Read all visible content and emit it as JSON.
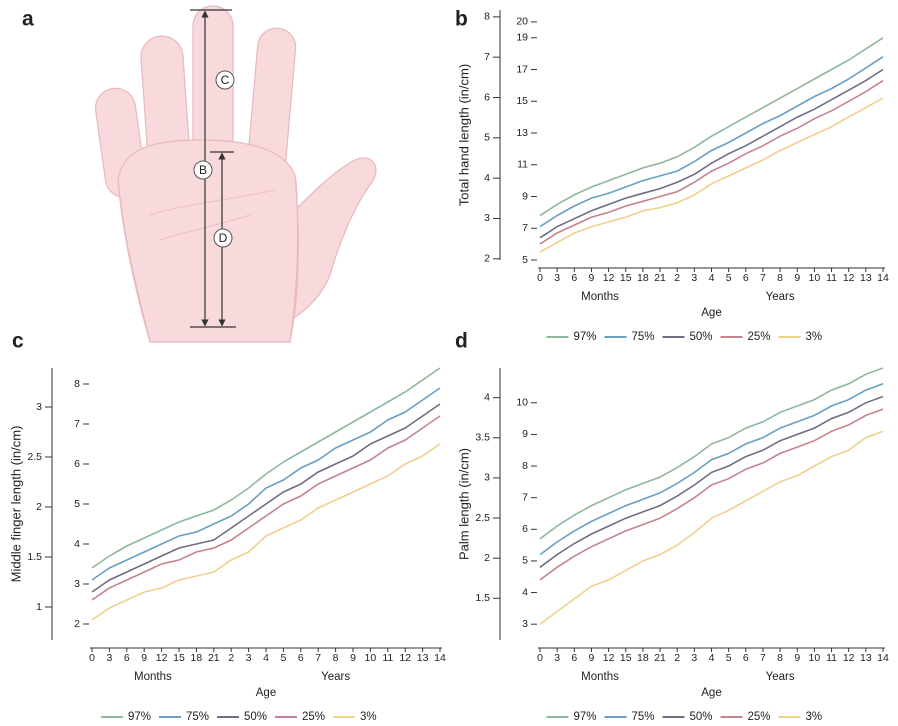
{
  "panel_a": {
    "label": "a",
    "markers": [
      "C",
      "B",
      "D"
    ]
  },
  "chart_data": [
    {
      "type": "line",
      "label": "b",
      "y_label": "Total hand length (in/cm)",
      "x_label": "Age",
      "x_groups": [
        "Months",
        "Years"
      ],
      "categories": [
        "0",
        "3",
        "6",
        "9",
        "12",
        "15",
        "18",
        "21",
        "2",
        "3",
        "4",
        "5",
        "6",
        "7",
        "8",
        "9",
        "10",
        "11",
        "12",
        "13",
        "14"
      ],
      "ylim": [
        5,
        20.75
      ],
      "yticks": [
        5,
        7,
        9,
        11,
        13,
        15,
        17,
        19,
        20
      ],
      "y2lim": [
        1.97,
        8.17
      ],
      "y2ticks": [
        2,
        3,
        4,
        5,
        6,
        7,
        8
      ],
      "legend": "bottom",
      "series": [
        {
          "name": "97%",
          "color": "#8fb79a",
          "values": [
            7.8,
            8.5,
            9.1,
            9.6,
            10.0,
            10.4,
            10.8,
            11.1,
            11.5,
            12.1,
            12.8,
            13.4,
            14.0,
            14.6,
            15.2,
            15.8,
            16.4,
            17.0,
            17.6,
            18.3,
            19.0
          ]
        },
        {
          "name": "75%",
          "color": "#6a9fc0",
          "values": [
            7.1,
            7.8,
            8.4,
            8.9,
            9.2,
            9.6,
            10.0,
            10.3,
            10.6,
            11.2,
            11.9,
            12.4,
            13.0,
            13.6,
            14.1,
            14.7,
            15.3,
            15.8,
            16.4,
            17.1,
            17.8
          ]
        },
        {
          "name": "50%",
          "color": "#6f6d86",
          "values": [
            6.4,
            7.1,
            7.6,
            8.1,
            8.5,
            8.9,
            9.2,
            9.5,
            9.9,
            10.4,
            11.1,
            11.7,
            12.2,
            12.8,
            13.4,
            14.0,
            14.5,
            15.1,
            15.7,
            16.3,
            17.0
          ]
        },
        {
          "name": "25%",
          "color": "#c4838d",
          "values": [
            6.0,
            6.7,
            7.2,
            7.7,
            8.0,
            8.4,
            8.7,
            9.0,
            9.3,
            9.9,
            10.6,
            11.1,
            11.7,
            12.2,
            12.8,
            13.3,
            13.9,
            14.4,
            15.0,
            15.6,
            16.3
          ]
        },
        {
          "name": "3%",
          "color": "#efd08f",
          "values": [
            5.5,
            6.1,
            6.7,
            7.1,
            7.4,
            7.7,
            8.1,
            8.3,
            8.6,
            9.1,
            9.8,
            10.3,
            10.8,
            11.3,
            11.9,
            12.4,
            12.9,
            13.4,
            14.0,
            14.6,
            15.2
          ]
        }
      ]
    },
    {
      "type": "line",
      "label": "c",
      "y_label": "Middle finger length (in/cm)",
      "x_label": "Age",
      "x_groups": [
        "Months",
        "Years"
      ],
      "categories": [
        "0",
        "3",
        "6",
        "9",
        "12",
        "15",
        "18",
        "21",
        "2",
        "3",
        "4",
        "5",
        "6",
        "7",
        "8",
        "9",
        "10",
        "11",
        "12",
        "13",
        "14"
      ],
      "ylim": [
        1.6,
        8.4
      ],
      "yticks": [
        2,
        3,
        4,
        5,
        6,
        7,
        8
      ],
      "y2lim": [
        0.67,
        3.39
      ],
      "y2ticks": [
        1,
        1.5,
        2,
        2.5,
        3
      ],
      "legend": "bottom",
      "series": [
        {
          "name": "97%",
          "color": "#8fb79a",
          "values": [
            3.4,
            3.7,
            3.95,
            4.15,
            4.35,
            4.55,
            4.7,
            4.85,
            5.1,
            5.4,
            5.75,
            6.05,
            6.3,
            6.55,
            6.8,
            7.05,
            7.3,
            7.55,
            7.8,
            8.1,
            8.4
          ]
        },
        {
          "name": "75%",
          "color": "#6a9fc0",
          "values": [
            3.1,
            3.4,
            3.6,
            3.8,
            4.0,
            4.2,
            4.3,
            4.5,
            4.7,
            5.0,
            5.4,
            5.6,
            5.9,
            6.1,
            6.4,
            6.6,
            6.8,
            7.1,
            7.3,
            7.6,
            7.9
          ]
        },
        {
          "name": "50%",
          "color": "#6f6d86",
          "values": [
            2.8,
            3.1,
            3.3,
            3.5,
            3.7,
            3.9,
            4.0,
            4.1,
            4.4,
            4.7,
            5.0,
            5.3,
            5.5,
            5.8,
            6.0,
            6.2,
            6.5,
            6.7,
            6.9,
            7.2,
            7.5
          ]
        },
        {
          "name": "25%",
          "color": "#c4838d",
          "values": [
            2.6,
            2.9,
            3.1,
            3.3,
            3.5,
            3.6,
            3.8,
            3.9,
            4.1,
            4.4,
            4.7,
            5.0,
            5.2,
            5.5,
            5.7,
            5.9,
            6.1,
            6.4,
            6.6,
            6.9,
            7.2
          ]
        },
        {
          "name": "3%",
          "color": "#efd08f",
          "values": [
            2.1,
            2.4,
            2.6,
            2.8,
            2.9,
            3.1,
            3.2,
            3.3,
            3.6,
            3.8,
            4.2,
            4.4,
            4.6,
            4.9,
            5.1,
            5.3,
            5.5,
            5.7,
            6.0,
            6.2,
            6.5
          ]
        }
      ]
    },
    {
      "type": "line",
      "label": "d",
      "y_label": "Palm length (in/cm)",
      "x_label": "Age",
      "x_groups": [
        "Months",
        "Years"
      ],
      "categories": [
        "0",
        "3",
        "6",
        "9",
        "12",
        "15",
        "18",
        "21",
        "2",
        "3",
        "4",
        "5",
        "6",
        "7",
        "8",
        "9",
        "10",
        "11",
        "12",
        "13",
        "14"
      ],
      "ylim": [
        2.5,
        11.1
      ],
      "yticks": [
        3,
        4,
        5,
        6,
        7,
        8,
        9,
        10
      ],
      "y2lim": [
        0.98,
        4.37
      ],
      "y2ticks": [
        1.5,
        2,
        2.5,
        3,
        3.5,
        4
      ],
      "legend": "bottom",
      "series": [
        {
          "name": "97%",
          "color": "#8fb79a",
          "values": [
            5.7,
            6.1,
            6.45,
            6.75,
            7.0,
            7.25,
            7.45,
            7.65,
            7.95,
            8.3,
            8.7,
            8.9,
            9.2,
            9.4,
            9.7,
            9.9,
            10.1,
            10.4,
            10.6,
            10.9,
            11.1
          ]
        },
        {
          "name": "75%",
          "color": "#6a9fc0",
          "values": [
            5.2,
            5.6,
            5.95,
            6.25,
            6.5,
            6.75,
            6.95,
            7.15,
            7.45,
            7.8,
            8.2,
            8.4,
            8.7,
            8.9,
            9.2,
            9.4,
            9.6,
            9.9,
            10.1,
            10.4,
            10.6
          ]
        },
        {
          "name": "50%",
          "color": "#6f6d86",
          "values": [
            4.8,
            5.2,
            5.55,
            5.85,
            6.1,
            6.35,
            6.55,
            6.75,
            7.05,
            7.4,
            7.8,
            8.0,
            8.3,
            8.5,
            8.8,
            9.0,
            9.2,
            9.5,
            9.7,
            10.0,
            10.2
          ]
        },
        {
          "name": "25%",
          "color": "#c4838d",
          "values": [
            4.4,
            4.8,
            5.15,
            5.45,
            5.7,
            5.95,
            6.15,
            6.35,
            6.65,
            7.0,
            7.4,
            7.6,
            7.9,
            8.1,
            8.4,
            8.6,
            8.8,
            9.1,
            9.3,
            9.6,
            9.8
          ]
        },
        {
          "name": "3%",
          "color": "#efd08f",
          "values": [
            3.0,
            3.4,
            3.8,
            4.2,
            4.4,
            4.7,
            5.0,
            5.2,
            5.5,
            5.9,
            6.35,
            6.6,
            6.9,
            7.2,
            7.5,
            7.7,
            8.0,
            8.3,
            8.5,
            8.9,
            9.1
          ]
        }
      ]
    }
  ]
}
